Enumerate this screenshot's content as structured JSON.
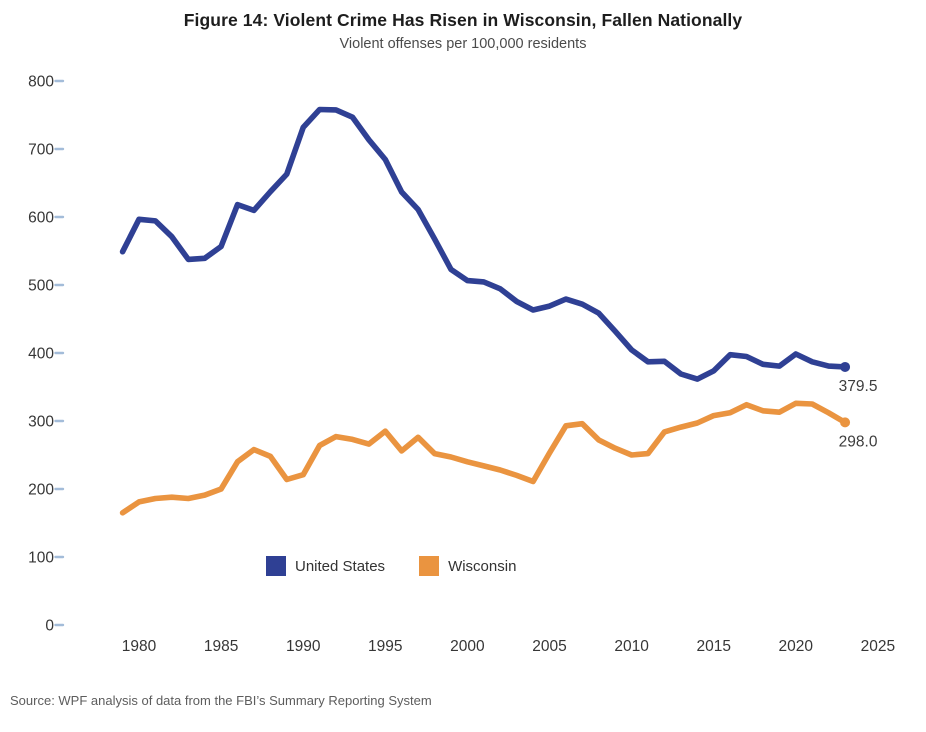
{
  "header": {
    "title": "Figure 14: Violent Crime Has Risen in Wisconsin, Fallen Nationally",
    "subtitle": "Violent offenses per 100,000 residents"
  },
  "footer": {
    "source": "Source: WPF analysis of data from the FBI’s Summary Reporting System"
  },
  "colors": {
    "united_states": "#2f4094",
    "wisconsin": "#ea9440",
    "axis_text": "#363636",
    "tick_mark": "#a3bcd9",
    "end_label_text": "#3d3d3d"
  },
  "chart_data": {
    "type": "line",
    "title": "Figure 14: Violent Crime Has Risen in Wisconsin, Fallen Nationally",
    "subtitle": "Violent offenses per 100,000 residents",
    "xlabel": "",
    "ylabel": "Violent offenses per 100,000 residents",
    "ylim": [
      0,
      800
    ],
    "xlim": [
      1978,
      2026
    ],
    "grid": false,
    "legend_position": "bottom-center",
    "yticks": [
      0,
      100,
      200,
      300,
      400,
      500,
      600,
      700,
      800
    ],
    "xticks": [
      1980,
      1985,
      1990,
      1995,
      2000,
      2005,
      2010,
      2015,
      2020,
      2025
    ],
    "years": [
      1979,
      1980,
      1981,
      1982,
      1983,
      1984,
      1985,
      1986,
      1987,
      1988,
      1989,
      1990,
      1991,
      1992,
      1993,
      1994,
      1995,
      1996,
      1997,
      1998,
      1999,
      2000,
      2001,
      2002,
      2003,
      2004,
      2005,
      2006,
      2007,
      2008,
      2009,
      2010,
      2011,
      2012,
      2013,
      2014,
      2015,
      2016,
      2017,
      2018,
      2019,
      2020,
      2021,
      2022,
      2023
    ],
    "series": [
      {
        "name": "United States",
        "key": "united-states",
        "color": "#2f4094",
        "end_label": "379.5",
        "values": [
          548.9,
          596.6,
          594.3,
          571.1,
          537.7,
          539.2,
          556.6,
          618.2,
          609.7,
          637.2,
          663.1,
          731.8,
          758.1,
          757.5,
          746.8,
          713.6,
          684.5,
          636.6,
          611.0,
          567.6,
          523.0,
          506.5,
          504.5,
          494.4,
          475.8,
          463.2,
          469.0,
          479.3,
          471.8,
          458.6,
          431.9,
          404.5,
          387.1,
          387.8,
          369.1,
          361.6,
          373.7,
          397.5,
          394.9,
          383.4,
          380.8,
          398.5,
          387.0,
          380.7,
          379.5
        ]
      },
      {
        "name": "Wisconsin",
        "key": "wisconsin",
        "color": "#ea9440",
        "end_label": "298.0",
        "values": [
          165,
          181,
          186,
          188,
          186,
          191,
          200,
          240,
          258,
          248,
          214,
          221,
          264,
          277,
          273,
          266,
          285,
          256,
          276,
          252,
          247,
          240,
          234,
          228,
          220,
          211,
          253,
          293,
          296,
          272,
          260,
          250,
          252,
          284,
          291,
          297,
          308,
          312,
          324,
          315,
          313,
          326,
          325,
          312,
          298.0
        ]
      }
    ]
  }
}
